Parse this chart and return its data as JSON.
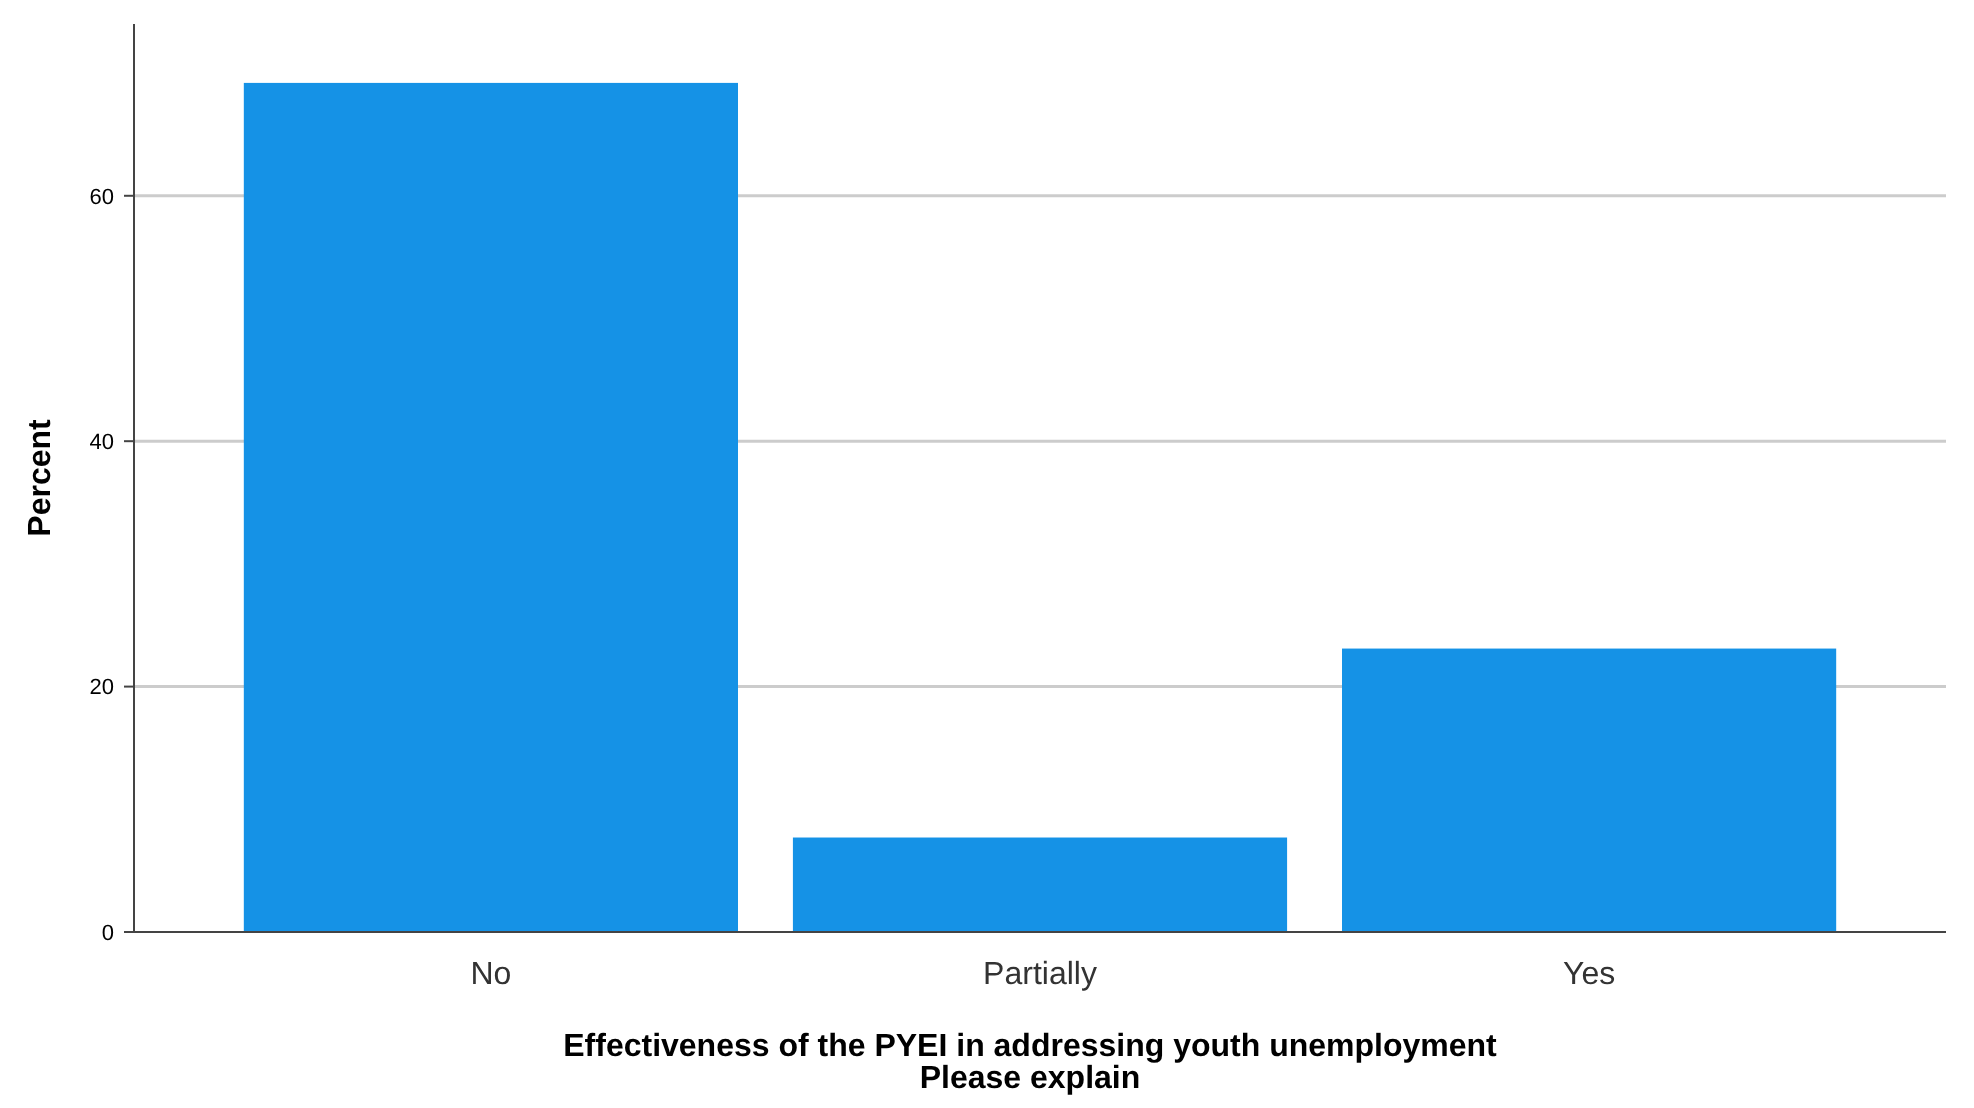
{
  "chart_data": {
    "type": "bar",
    "xlabel": "Effectiveness of the PYEI in addressing youth unemployment\nPlease explain",
    "ylabel": "Percent",
    "categories": [
      "No",
      "Partially",
      "Yes"
    ],
    "values": [
      69.2,
      7.7,
      23.1
    ],
    "color": "#1592e6",
    "ylim": [
      0,
      74
    ],
    "yticks": [
      0,
      20,
      40,
      60
    ],
    "grid": "y"
  }
}
